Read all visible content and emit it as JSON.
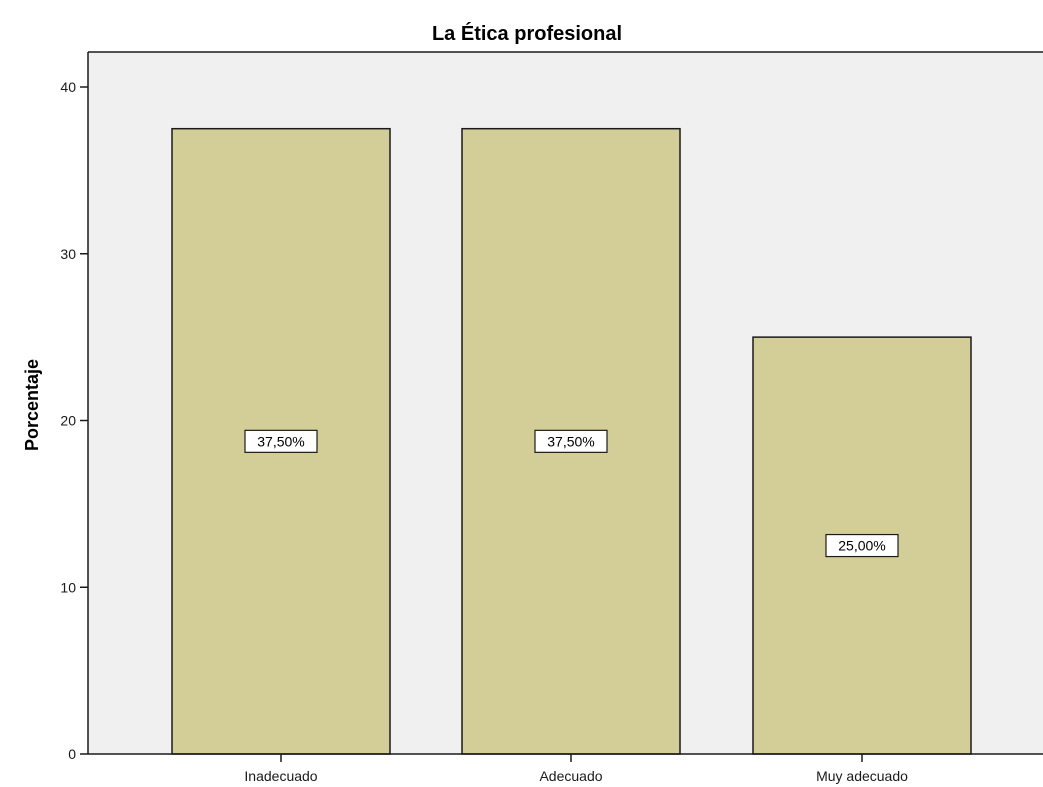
{
  "chart_data": {
    "type": "bar",
    "title": "La Ética profesional",
    "xlabel": "",
    "ylabel": "Porcentaje",
    "categories": [
      "Inadecuado",
      "Adecuado",
      "Muy adecuado"
    ],
    "values": [
      37.5,
      37.5,
      25.0
    ],
    "data_labels": [
      "37,50%",
      "37,50%",
      "25,00%"
    ],
    "ylim": [
      0,
      42
    ],
    "yticks": [
      0,
      10,
      20,
      30,
      40
    ],
    "ytick_labels": [
      "0",
      "10",
      "20",
      "30",
      "40"
    ],
    "grid": false,
    "legend": "none",
    "colors": {
      "bar_fill": "#d3cd97",
      "bar_stroke": "#1a1a1a",
      "plot_background": "#f0f0f0",
      "axis": "#1a1a1a"
    }
  }
}
